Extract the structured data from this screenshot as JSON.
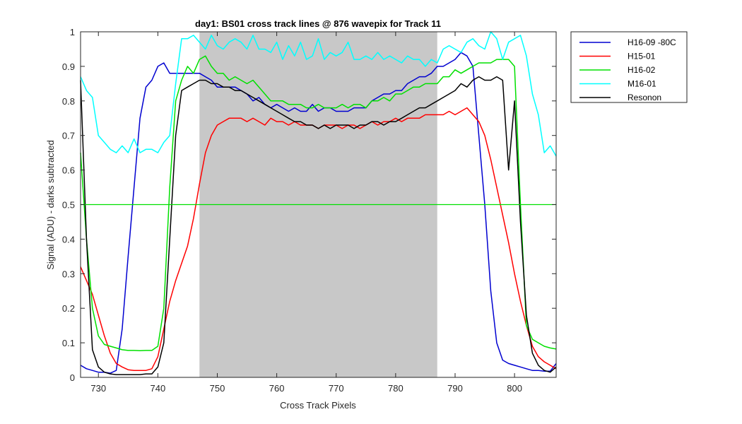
{
  "chart_data": {
    "type": "line",
    "title": "day1: BS01  cross track lines @ 876 wavepix for Track 11",
    "xlabel": "Cross Track Pixels",
    "ylabel": "Signal (ADU) - darks subtracted",
    "xlim": [
      727,
      807
    ],
    "ylim": [
      0,
      1
    ],
    "xticks": [
      730,
      740,
      750,
      760,
      770,
      780,
      790,
      800
    ],
    "yticks": [
      0,
      0.1,
      0.2,
      0.3,
      0.4,
      0.5,
      0.6,
      0.7,
      0.8,
      0.9,
      1
    ],
    "ytick_labels": [
      "0",
      "0.1",
      "0.2",
      "0.3",
      "0.4",
      "0.5",
      "0.6",
      "0.7",
      "0.8",
      "0.9",
      "1"
    ],
    "shaded_region": {
      "x": [
        747,
        787
      ],
      "color": "#c8c8c8"
    },
    "reference_line": {
      "y": 0.5,
      "color": "#00e000"
    },
    "legend_position": "outside-top-right",
    "series": [
      {
        "name": "H16-09 -80C",
        "color": "#0000d0",
        "x": [
          727,
          728,
          729,
          730,
          731,
          732,
          733,
          734,
          735,
          736,
          737,
          738,
          739,
          740,
          741,
          742,
          743,
          744,
          745,
          746,
          747,
          748,
          749,
          750,
          751,
          752,
          753,
          754,
          755,
          756,
          757,
          758,
          759,
          760,
          761,
          762,
          763,
          764,
          765,
          766,
          767,
          768,
          769,
          770,
          771,
          772,
          773,
          774,
          775,
          776,
          777,
          778,
          779,
          780,
          781,
          782,
          783,
          784,
          785,
          786,
          787,
          788,
          789,
          790,
          791,
          792,
          793,
          794,
          795,
          796,
          797,
          798,
          799,
          800,
          801,
          802,
          803,
          804,
          805,
          806,
          807
        ],
        "values": [
          0.035,
          0.025,
          0.02,
          0.015,
          0.015,
          0.012,
          0.02,
          0.14,
          0.35,
          0.55,
          0.75,
          0.84,
          0.86,
          0.9,
          0.91,
          0.88,
          0.88,
          0.88,
          0.88,
          0.88,
          0.88,
          0.87,
          0.86,
          0.84,
          0.84,
          0.84,
          0.84,
          0.83,
          0.82,
          0.8,
          0.81,
          0.79,
          0.78,
          0.79,
          0.78,
          0.77,
          0.78,
          0.77,
          0.77,
          0.79,
          0.77,
          0.78,
          0.78,
          0.77,
          0.77,
          0.77,
          0.78,
          0.78,
          0.78,
          0.8,
          0.81,
          0.82,
          0.82,
          0.83,
          0.83,
          0.85,
          0.86,
          0.87,
          0.87,
          0.88,
          0.9,
          0.9,
          0.91,
          0.92,
          0.94,
          0.93,
          0.9,
          0.7,
          0.5,
          0.25,
          0.1,
          0.05,
          0.04,
          0.035,
          0.03,
          0.025,
          0.02,
          0.02,
          0.018,
          0.018,
          0.04
        ]
      },
      {
        "name": "H15-01",
        "color": "#ff0000",
        "x": [
          727,
          728,
          729,
          730,
          731,
          732,
          733,
          734,
          735,
          736,
          737,
          738,
          739,
          740,
          741,
          742,
          743,
          744,
          745,
          746,
          747,
          748,
          749,
          750,
          751,
          752,
          753,
          754,
          755,
          756,
          757,
          758,
          759,
          760,
          761,
          762,
          763,
          764,
          765,
          766,
          767,
          768,
          769,
          770,
          771,
          772,
          773,
          774,
          775,
          776,
          777,
          778,
          779,
          780,
          781,
          782,
          783,
          784,
          785,
          786,
          787,
          788,
          789,
          790,
          791,
          792,
          793,
          794,
          795,
          796,
          797,
          798,
          799,
          800,
          801,
          802,
          803,
          804,
          805,
          806,
          807
        ],
        "values": [
          0.32,
          0.28,
          0.24,
          0.18,
          0.12,
          0.07,
          0.04,
          0.03,
          0.022,
          0.02,
          0.02,
          0.02,
          0.025,
          0.06,
          0.14,
          0.22,
          0.28,
          0.33,
          0.38,
          0.46,
          0.56,
          0.65,
          0.7,
          0.73,
          0.74,
          0.75,
          0.75,
          0.75,
          0.74,
          0.75,
          0.74,
          0.73,
          0.75,
          0.74,
          0.74,
          0.73,
          0.74,
          0.73,
          0.73,
          0.73,
          0.72,
          0.73,
          0.73,
          0.73,
          0.72,
          0.73,
          0.73,
          0.72,
          0.73,
          0.74,
          0.73,
          0.74,
          0.74,
          0.75,
          0.74,
          0.75,
          0.75,
          0.75,
          0.76,
          0.76,
          0.76,
          0.76,
          0.77,
          0.76,
          0.77,
          0.78,
          0.76,
          0.74,
          0.7,
          0.63,
          0.55,
          0.47,
          0.39,
          0.3,
          0.22,
          0.15,
          0.09,
          0.06,
          0.045,
          0.035,
          0.025
        ]
      },
      {
        "name": "H16-02",
        "color": "#00e000",
        "x": [
          727,
          728,
          729,
          730,
          731,
          732,
          733,
          734,
          735,
          736,
          737,
          738,
          739,
          740,
          741,
          742,
          743,
          744,
          745,
          746,
          747,
          748,
          749,
          750,
          751,
          752,
          753,
          754,
          755,
          756,
          757,
          758,
          759,
          760,
          761,
          762,
          763,
          764,
          765,
          766,
          767,
          768,
          769,
          770,
          771,
          772,
          773,
          774,
          775,
          776,
          777,
          778,
          779,
          780,
          781,
          782,
          783,
          784,
          785,
          786,
          787,
          788,
          789,
          790,
          791,
          792,
          793,
          794,
          795,
          796,
          797,
          798,
          799,
          800,
          801,
          802,
          803,
          804,
          805,
          806,
          807
        ],
        "values": [
          0.65,
          0.4,
          0.2,
          0.12,
          0.095,
          0.09,
          0.085,
          0.08,
          0.078,
          0.078,
          0.077,
          0.078,
          0.078,
          0.09,
          0.2,
          0.55,
          0.8,
          0.86,
          0.9,
          0.88,
          0.92,
          0.93,
          0.9,
          0.88,
          0.88,
          0.86,
          0.87,
          0.86,
          0.85,
          0.86,
          0.84,
          0.82,
          0.8,
          0.8,
          0.8,
          0.79,
          0.79,
          0.79,
          0.78,
          0.78,
          0.79,
          0.78,
          0.78,
          0.78,
          0.79,
          0.78,
          0.79,
          0.79,
          0.78,
          0.8,
          0.8,
          0.81,
          0.8,
          0.82,
          0.82,
          0.83,
          0.84,
          0.84,
          0.85,
          0.85,
          0.85,
          0.87,
          0.87,
          0.89,
          0.88,
          0.89,
          0.9,
          0.91,
          0.91,
          0.91,
          0.92,
          0.92,
          0.92,
          0.9,
          0.5,
          0.15,
          0.11,
          0.1,
          0.09,
          0.085,
          0.082
        ]
      },
      {
        "name": "M16-01",
        "color": "#00ffff",
        "x": [
          727,
          728,
          729,
          730,
          731,
          732,
          733,
          734,
          735,
          736,
          737,
          738,
          739,
          740,
          741,
          742,
          743,
          744,
          745,
          746,
          747,
          748,
          749,
          750,
          751,
          752,
          753,
          754,
          755,
          756,
          757,
          758,
          759,
          760,
          761,
          762,
          763,
          764,
          765,
          766,
          767,
          768,
          769,
          770,
          771,
          772,
          773,
          774,
          775,
          776,
          777,
          778,
          779,
          780,
          781,
          782,
          783,
          784,
          785,
          786,
          787,
          788,
          789,
          790,
          791,
          792,
          793,
          794,
          795,
          796,
          797,
          798,
          799,
          800,
          801,
          802,
          803,
          804,
          805,
          806,
          807
        ],
        "values": [
          0.87,
          0.83,
          0.81,
          0.7,
          0.68,
          0.66,
          0.65,
          0.67,
          0.65,
          0.69,
          0.65,
          0.66,
          0.66,
          0.65,
          0.68,
          0.7,
          0.85,
          0.98,
          0.98,
          0.99,
          0.97,
          0.95,
          0.99,
          0.96,
          0.95,
          0.97,
          0.98,
          0.97,
          0.95,
          0.99,
          0.95,
          0.95,
          0.94,
          0.97,
          0.92,
          0.96,
          0.93,
          0.97,
          0.92,
          0.93,
          0.98,
          0.92,
          0.94,
          0.93,
          0.94,
          0.97,
          0.92,
          0.92,
          0.93,
          0.92,
          0.94,
          0.92,
          0.93,
          0.92,
          0.91,
          0.93,
          0.92,
          0.92,
          0.9,
          0.92,
          0.91,
          0.95,
          0.96,
          0.95,
          0.94,
          0.97,
          0.98,
          0.96,
          0.95,
          1.0,
          0.98,
          0.92,
          0.97,
          0.98,
          0.99,
          0.93,
          0.82,
          0.76,
          0.65,
          0.67,
          0.64
        ]
      },
      {
        "name": "Resonon",
        "color": "#000000",
        "x": [
          727,
          728,
          729,
          730,
          731,
          732,
          733,
          734,
          735,
          736,
          737,
          738,
          739,
          740,
          741,
          742,
          743,
          744,
          745,
          746,
          747,
          748,
          749,
          750,
          751,
          752,
          753,
          754,
          755,
          756,
          757,
          758,
          759,
          760,
          761,
          762,
          763,
          764,
          765,
          766,
          767,
          768,
          769,
          770,
          771,
          772,
          773,
          774,
          775,
          776,
          777,
          778,
          779,
          780,
          781,
          782,
          783,
          784,
          785,
          786,
          787,
          788,
          789,
          790,
          791,
          792,
          793,
          794,
          795,
          796,
          797,
          798,
          799,
          800,
          801,
          802,
          803,
          804,
          805,
          806,
          807
        ],
        "values": [
          0.86,
          0.4,
          0.08,
          0.03,
          0.015,
          0.01,
          0.008,
          0.008,
          0.008,
          0.008,
          0.008,
          0.01,
          0.01,
          0.03,
          0.1,
          0.4,
          0.7,
          0.83,
          0.84,
          0.85,
          0.86,
          0.86,
          0.85,
          0.85,
          0.84,
          0.84,
          0.83,
          0.83,
          0.82,
          0.81,
          0.8,
          0.79,
          0.78,
          0.77,
          0.76,
          0.75,
          0.74,
          0.74,
          0.73,
          0.73,
          0.72,
          0.73,
          0.72,
          0.73,
          0.73,
          0.73,
          0.72,
          0.73,
          0.73,
          0.74,
          0.74,
          0.73,
          0.74,
          0.74,
          0.75,
          0.76,
          0.77,
          0.78,
          0.78,
          0.79,
          0.8,
          0.81,
          0.82,
          0.83,
          0.85,
          0.84,
          0.86,
          0.87,
          0.86,
          0.86,
          0.87,
          0.86,
          0.6,
          0.8,
          0.45,
          0.18,
          0.07,
          0.035,
          0.02,
          0.015,
          0.03
        ]
      }
    ]
  }
}
